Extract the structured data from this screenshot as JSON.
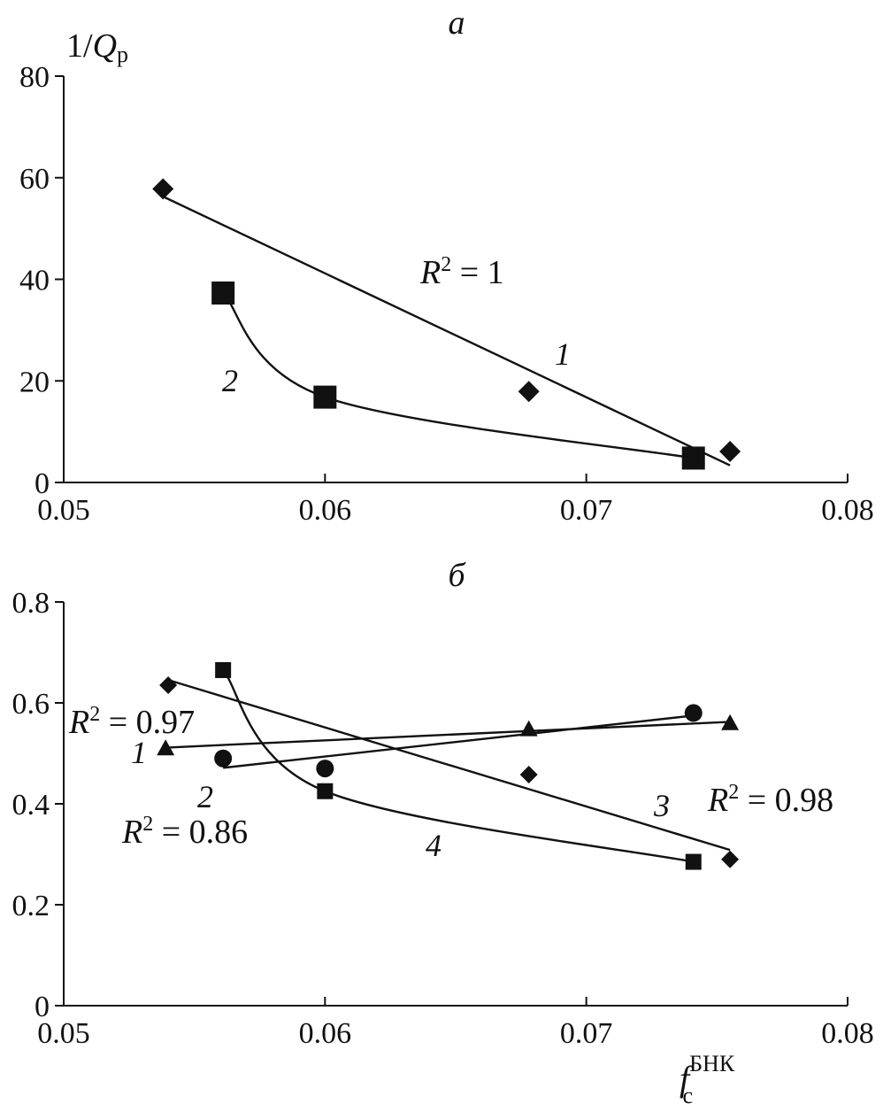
{
  "chart_data": [
    {
      "type": "scatter",
      "panel_label": "а",
      "ylabel_main": "1/",
      "ylabel_var": "Q",
      "ylabel_sub": "р",
      "xlabel": "",
      "xlim": [
        0.05,
        0.08
      ],
      "ylim": [
        0,
        80
      ],
      "xticks": [
        "0.05",
        "0.06",
        "0.07",
        "0.08"
      ],
      "yticks": [
        "0",
        "20",
        "40",
        "60",
        "80"
      ],
      "series": [
        {
          "id": "1",
          "name": "1",
          "marker": "diamond",
          "x": [
            0.0538,
            0.0678,
            0.0755
          ],
          "y": [
            57.8,
            17.9,
            6.1
          ],
          "fit": "linear",
          "fit_range": [
            0.0538,
            0.0755
          ],
          "r2": "R² = 1"
        },
        {
          "id": "2",
          "name": "2",
          "marker": "square",
          "x": [
            0.0561,
            0.06,
            0.0741
          ],
          "y": [
            37.3,
            16.8,
            4.8
          ],
          "fit": "smooth",
          "r2": ""
        }
      ],
      "annotations": [
        {
          "id": "r2_1",
          "text": "R² = 1"
        },
        {
          "id": "label_1",
          "text": "1"
        },
        {
          "id": "label_2",
          "text": "2"
        }
      ]
    },
    {
      "type": "scatter",
      "panel_label": "б",
      "xlabel_main": "f",
      "xlabel_sub": "с",
      "xlabel_sup": "БНК",
      "ylabel": "",
      "xlim": [
        0.05,
        0.08
      ],
      "ylim": [
        0,
        0.8
      ],
      "xticks": [
        "0.05",
        "0.06",
        "0.07",
        "0.08"
      ],
      "yticks": [
        "0",
        "0.2",
        "0.4",
        "0.6",
        "0.8"
      ],
      "series": [
        {
          "id": "1",
          "name": "1",
          "marker": "triangle",
          "x": [
            0.0539,
            0.0678,
            0.0755
          ],
          "y": [
            0.51,
            0.548,
            0.56
          ],
          "fit": "linear",
          "fit_range": [
            0.0539,
            0.0755
          ],
          "r2": "R² = 0.97"
        },
        {
          "id": "2",
          "name": "2",
          "marker": "circle",
          "x": [
            0.0561,
            0.06,
            0.0741
          ],
          "y": [
            0.49,
            0.47,
            0.58
          ],
          "fit": "linear",
          "fit_range": [
            0.0561,
            0.0741
          ],
          "r2": "R² = 0.86"
        },
        {
          "id": "3",
          "name": "3",
          "marker": "diamond",
          "x": [
            0.054,
            0.0678,
            0.0755
          ],
          "y": [
            0.635,
            0.458,
            0.29
          ],
          "fit": "linear",
          "fit_range": [
            0.054,
            0.0755
          ],
          "r2": "R² = 0.98"
        },
        {
          "id": "4",
          "name": "4",
          "marker": "square",
          "x": [
            0.0561,
            0.06,
            0.0741
          ],
          "y": [
            0.665,
            0.425,
            0.285
          ],
          "fit": "smooth",
          "r2": ""
        }
      ],
      "annotations": [
        {
          "id": "r2_1",
          "text": "R² = 0.97"
        },
        {
          "id": "r2_2",
          "text": "R² = 0.86"
        },
        {
          "id": "r2_3",
          "text": "R² = 0.98"
        },
        {
          "id": "label_1",
          "text": "1"
        },
        {
          "id": "label_2",
          "text": "2"
        },
        {
          "id": "label_3",
          "text": "3"
        },
        {
          "id": "label_4",
          "text": "4"
        }
      ]
    }
  ]
}
